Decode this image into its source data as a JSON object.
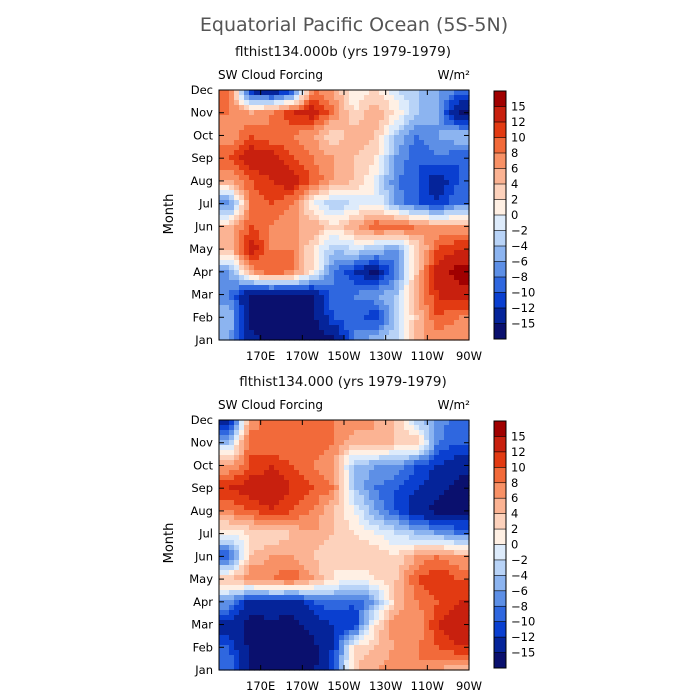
{
  "figure": {
    "title": "Equatorial Pacific Ocean (5S-5N)"
  },
  "colorbar": {
    "labels": [
      "15",
      "12",
      "10",
      "8",
      "6",
      "4",
      "2",
      "0",
      "−2",
      "−4",
      "−6",
      "−8",
      "−10",
      "−12",
      "−15"
    ],
    "colors": [
      "#a00000",
      "#c8200e",
      "#e23a12",
      "#f26a3a",
      "#f89166",
      "#fbb393",
      "#fdd2bc",
      "#fff0e4",
      "#ddebfb",
      "#b8d3f7",
      "#8cb4f0",
      "#5d8fe6",
      "#2f67df",
      "#0a3fd0",
      "#05249a",
      "#0a106e"
    ]
  },
  "chart_data": [
    {
      "type": "heatmap",
      "title": "flthist134.000b (yrs 1979-1979)",
      "variable": "SW Cloud Forcing",
      "units": "W/m²",
      "ylabel": "Month",
      "x_ticks": [
        "170E",
        "170W",
        "150W",
        "130W",
        "110W",
        "90W"
      ],
      "y_ticks": [
        "Jan",
        "Feb",
        "Mar",
        "Apr",
        "May",
        "Jun",
        "Jul",
        "Aug",
        "Sep",
        "Oct",
        "Nov",
        "Dec"
      ],
      "xlim_lon": [
        150,
        270
      ],
      "clevels": [
        -15,
        -12,
        -10,
        -8,
        -6,
        -4,
        -2,
        0,
        2,
        4,
        6,
        8,
        10,
        12,
        15
      ],
      "x": [
        155,
        165,
        175,
        185,
        195,
        205,
        215,
        225,
        235,
        245,
        255,
        265
      ],
      "z": [
        [
          -6,
          -14,
          -16,
          -16,
          -16,
          -16,
          -8,
          -4,
          -2,
          6,
          6,
          6
        ],
        [
          -4,
          -16,
          -16,
          -16,
          -16,
          -10,
          -8,
          -12,
          -4,
          4,
          10,
          8
        ],
        [
          -8,
          -16,
          -16,
          -16,
          -16,
          -8,
          -8,
          -6,
          -4,
          6,
          12,
          14
        ],
        [
          -6,
          6,
          10,
          8,
          2,
          -8,
          -12,
          -16,
          -8,
          4,
          14,
          16
        ],
        [
          4,
          14,
          8,
          8,
          2,
          -4,
          -2,
          -4,
          -6,
          2,
          10,
          12
        ],
        [
          4,
          10,
          8,
          6,
          6,
          2,
          6,
          10,
          10,
          8,
          6,
          6
        ],
        [
          -8,
          8,
          10,
          8,
          0,
          -4,
          -2,
          0,
          -6,
          -10,
          -12,
          -8
        ],
        [
          6,
          10,
          12,
          14,
          10,
          6,
          4,
          0,
          -8,
          -10,
          -14,
          -10
        ],
        [
          10,
          14,
          14,
          10,
          8,
          6,
          4,
          2,
          -6,
          -10,
          -8,
          -10
        ],
        [
          6,
          10,
          8,
          8,
          6,
          2,
          6,
          4,
          -4,
          -8,
          -6,
          -4
        ],
        [
          8,
          6,
          8,
          12,
          14,
          8,
          2,
          6,
          2,
          -4,
          -6,
          -16
        ],
        [
          10,
          -14,
          -16,
          -12,
          8,
          6,
          0,
          2,
          -2,
          -4,
          -6,
          -8
        ]
      ]
    },
    {
      "type": "heatmap",
      "title": "flthist134.000 (yrs 1979-1979)",
      "variable": "SW Cloud Forcing",
      "units": "W/m²",
      "ylabel": "Month",
      "x_ticks": [
        "170E",
        "170W",
        "150W",
        "130W",
        "110W",
        "90W"
      ],
      "y_ticks": [
        "Jan",
        "Feb",
        "Mar",
        "Apr",
        "May",
        "Jun",
        "Jul",
        "Aug",
        "Sep",
        "Oct",
        "Nov",
        "Dec"
      ],
      "xlim_lon": [
        150,
        270
      ],
      "clevels": [
        -15,
        -12,
        -10,
        -8,
        -6,
        -4,
        -2,
        0,
        2,
        4,
        6,
        8,
        10,
        12,
        15
      ],
      "x": [
        155,
        165,
        175,
        185,
        195,
        205,
        215,
        225,
        235,
        245,
        255,
        265
      ],
      "z": [
        [
          -8,
          -16,
          -16,
          -16,
          -16,
          -10,
          4,
          6,
          8,
          8,
          6,
          4
        ],
        [
          -10,
          -16,
          -16,
          -16,
          -16,
          -12,
          2,
          4,
          6,
          8,
          10,
          12
        ],
        [
          -14,
          -16,
          -16,
          -16,
          -14,
          -12,
          -12,
          2,
          8,
          6,
          12,
          14
        ],
        [
          -6,
          -14,
          -12,
          -14,
          -10,
          -8,
          -10,
          -6,
          4,
          8,
          10,
          12
        ],
        [
          4,
          8,
          8,
          10,
          6,
          2,
          0,
          2,
          4,
          10,
          12,
          10
        ],
        [
          -10,
          4,
          6,
          6,
          4,
          2,
          4,
          4,
          2,
          6,
          8,
          6
        ],
        [
          0,
          2,
          2,
          4,
          6,
          4,
          2,
          0,
          -2,
          -4,
          -6,
          -8
        ],
        [
          8,
          10,
          12,
          10,
          8,
          4,
          0,
          -6,
          -10,
          -14,
          -16,
          -16
        ],
        [
          12,
          14,
          14,
          12,
          10,
          8,
          -4,
          -8,
          -10,
          -12,
          -14,
          -16
        ],
        [
          6,
          10,
          12,
          10,
          8,
          6,
          -4,
          -6,
          -6,
          -10,
          -12,
          -14
        ],
        [
          -4,
          10,
          8,
          8,
          10,
          8,
          4,
          6,
          4,
          4,
          -8,
          -10
        ],
        [
          -14,
          6,
          10,
          8,
          10,
          8,
          8,
          6,
          4,
          -4,
          -6,
          -10
        ]
      ]
    }
  ]
}
